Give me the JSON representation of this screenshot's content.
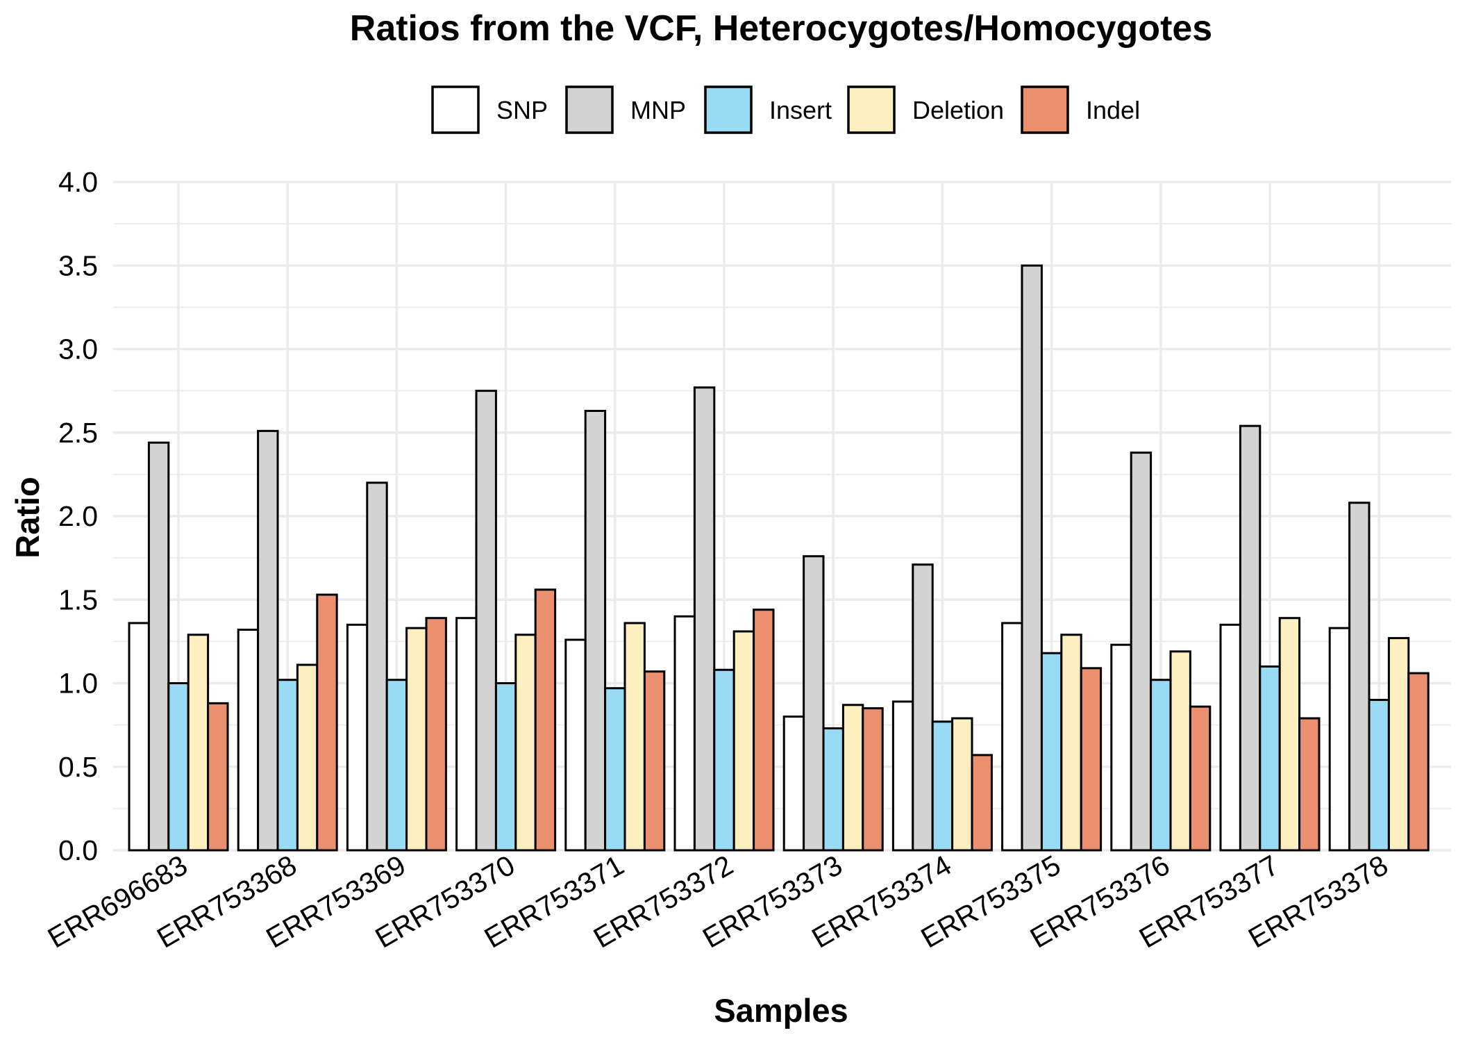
{
  "chart_data": {
    "type": "bar",
    "title": "Ratios from the VCF, Heterocygotes/Homocygotes",
    "xlabel": "Samples",
    "ylabel": "Ratio",
    "ylim": [
      0,
      4.0
    ],
    "yticks": [
      "0.0",
      "0.5",
      "1.0",
      "1.5",
      "2.0",
      "2.5",
      "3.0",
      "3.5",
      "4.0"
    ],
    "grid": true,
    "legend_position": "top",
    "categories": [
      "ERR696683",
      "ERR753368",
      "ERR753369",
      "ERR753370",
      "ERR753371",
      "ERR753372",
      "ERR753373",
      "ERR753374",
      "ERR753375",
      "ERR753376",
      "ERR753377",
      "ERR753378"
    ],
    "series": [
      {
        "name": "SNP",
        "color": "#ffffff",
        "values": [
          1.36,
          1.32,
          1.35,
          1.39,
          1.26,
          1.4,
          0.8,
          0.89,
          1.36,
          1.23,
          1.35,
          1.33
        ]
      },
      {
        "name": "MNP",
        "color": "#d3d3d3",
        "values": [
          2.44,
          2.51,
          2.2,
          2.75,
          2.63,
          2.77,
          1.76,
          1.71,
          3.5,
          2.38,
          2.54,
          2.08
        ]
      },
      {
        "name": "Insert",
        "color": "#99dbf5",
        "values": [
          1.0,
          1.02,
          1.02,
          1.0,
          0.97,
          1.08,
          0.73,
          0.77,
          1.18,
          1.02,
          1.1,
          0.9
        ]
      },
      {
        "name": "Deletion",
        "color": "#fdefc0",
        "values": [
          1.29,
          1.11,
          1.33,
          1.29,
          1.36,
          1.31,
          0.87,
          0.79,
          1.29,
          1.19,
          1.39,
          1.27
        ]
      },
      {
        "name": "Indel",
        "color": "#ea9070",
        "values": [
          0.88,
          1.53,
          1.39,
          1.56,
          1.07,
          1.44,
          0.85,
          0.57,
          1.09,
          0.86,
          0.79,
          1.06
        ]
      }
    ]
  }
}
